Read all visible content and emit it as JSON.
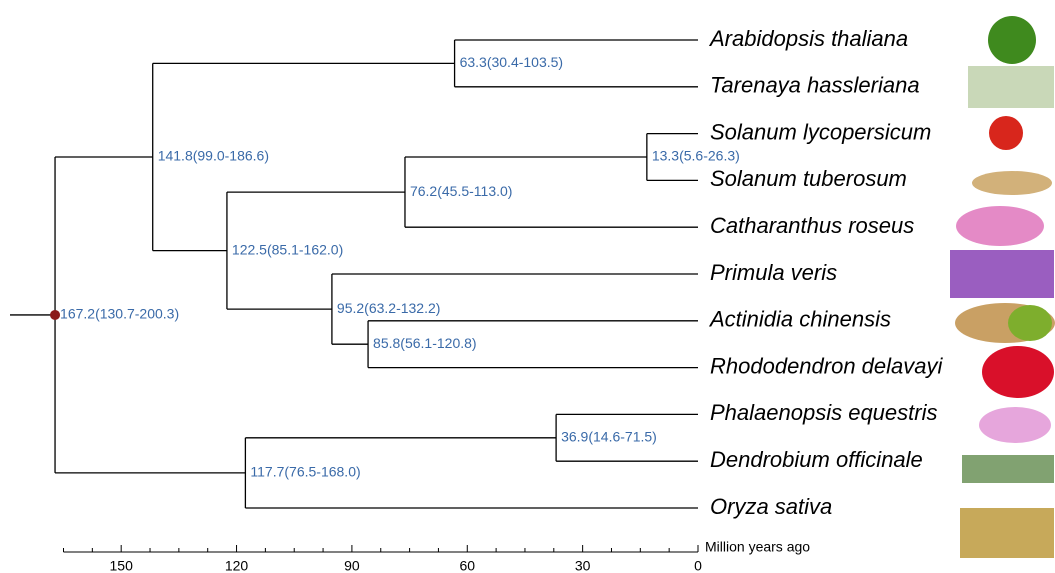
{
  "tree": {
    "label": "167.2(130.7-200.3)",
    "age": 167.2,
    "children": [
      {
        "label": "141.8(99.0-186.6)",
        "age": 141.8,
        "children": [
          {
            "label": "63.3(30.4-103.5)",
            "age": 63.3,
            "children": [
              {
                "name": "Arabidopsis thaliana"
              },
              {
                "name": "Tarenaya hassleriana"
              }
            ]
          },
          {
            "label": "122.5(85.1-162.0)",
            "age": 122.5,
            "children": [
              {
                "label": "76.2(45.5-113.0)",
                "age": 76.2,
                "children": [
                  {
                    "label": "13.3(5.6-26.3)",
                    "age": 13.3,
                    "children": [
                      {
                        "name": "Solanum lycopersicum"
                      },
                      {
                        "name": "Solanum tuberosum"
                      }
                    ]
                  },
                  {
                    "name": "Catharanthus roseus"
                  }
                ]
              },
              {
                "label": "95.2(63.2-132.2)",
                "age": 95.2,
                "children": [
                  {
                    "name": "Primula veris"
                  },
                  {
                    "label": "85.8(56.1-120.8)",
                    "age": 85.8,
                    "children": [
                      {
                        "name": "Actinidia chinensis"
                      },
                      {
                        "name": "Rhododendron delavayi"
                      }
                    ]
                  }
                ]
              }
            ]
          }
        ]
      },
      {
        "label": "117.7(76.5-168.0)",
        "age": 117.7,
        "children": [
          {
            "label": "36.9(14.6-71.5)",
            "age": 36.9,
            "children": [
              {
                "name": "Phalaenopsis equestris"
              },
              {
                "name": "Dendrobium officinale"
              }
            ]
          },
          {
            "name": "Oryza sativa"
          }
        ]
      }
    ]
  },
  "axis": {
    "label": "Million years ago",
    "lim": [
      165,
      0
    ],
    "ticks": [
      150,
      120,
      90,
      60,
      30,
      0
    ],
    "minor_ticks": [
      165,
      157.5,
      142.5,
      135,
      127.5,
      112.5,
      105,
      97.5,
      82.5,
      75,
      67.5,
      52.5,
      45,
      37.5,
      22.5,
      15,
      7.5
    ]
  }
}
